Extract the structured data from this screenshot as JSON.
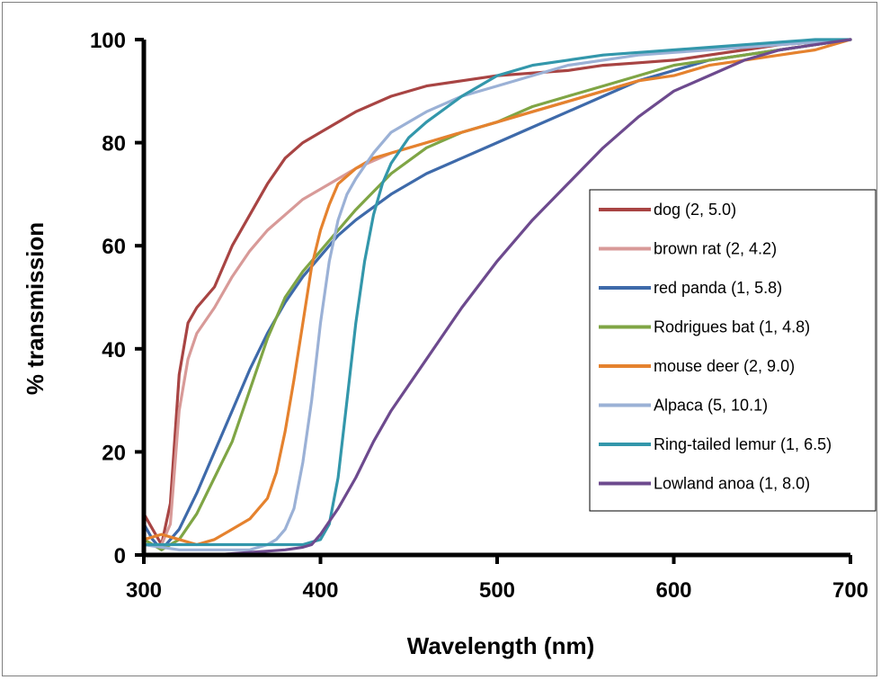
{
  "chart_data": {
    "type": "line",
    "title": "",
    "xlabel": "Wavelength (nm)",
    "ylabel": "% transmission",
    "xlim": [
      300,
      700
    ],
    "ylim": [
      0,
      100
    ],
    "x_ticks": [
      300,
      400,
      500,
      600,
      700
    ],
    "y_ticks": [
      0,
      20,
      40,
      60,
      80,
      100
    ],
    "grid": false,
    "legend_position": "right",
    "series": [
      {
        "name": "dog (2, 5.0)",
        "color": "#a84443",
        "x": [
          300,
          305,
          310,
          315,
          320,
          325,
          330,
          340,
          350,
          360,
          370,
          380,
          390,
          400,
          420,
          440,
          460,
          480,
          500,
          520,
          540,
          560,
          580,
          600,
          620,
          640,
          660,
          680,
          700
        ],
        "y": [
          8,
          5,
          2,
          10,
          35,
          45,
          48,
          52,
          60,
          66,
          72,
          77,
          80,
          82,
          86,
          89,
          91,
          92,
          93,
          93.5,
          94,
          95,
          95.5,
          96,
          97,
          98,
          99,
          99.5,
          100
        ]
      },
      {
        "name": "brown rat (2, 4.2)",
        "color": "#d89a98",
        "x": [
          300,
          305,
          310,
          315,
          320,
          325,
          330,
          340,
          350,
          360,
          370,
          380,
          390,
          400,
          420,
          440,
          460,
          480,
          500,
          520,
          540,
          560,
          580,
          600,
          620,
          640,
          660,
          680,
          700
        ],
        "y": [
          3,
          2,
          2,
          6,
          28,
          38,
          43,
          48,
          54,
          59,
          63,
          66,
          69,
          71,
          75,
          78,
          80,
          82,
          84,
          86,
          88,
          90,
          92,
          94,
          96,
          97,
          98,
          99,
          100
        ]
      },
      {
        "name": "red panda (1, 5.8)",
        "color": "#3e6aaa",
        "x": [
          300,
          305,
          310,
          320,
          330,
          340,
          350,
          360,
          370,
          380,
          390,
          400,
          410,
          420,
          440,
          460,
          480,
          500,
          520,
          540,
          560,
          580,
          600,
          620,
          640,
          660,
          680,
          700
        ],
        "y": [
          6,
          3,
          1,
          5,
          12,
          20,
          28,
          36,
          43,
          49,
          54,
          58,
          62,
          65,
          70,
          74,
          77,
          80,
          83,
          86,
          89,
          92,
          94,
          96,
          97,
          98,
          99,
          100
        ]
      },
      {
        "name": "Rodrigues bat (1, 4.8)",
        "color": "#7fa545",
        "x": [
          300,
          305,
          310,
          320,
          330,
          340,
          350,
          360,
          370,
          380,
          390,
          400,
          410,
          420,
          440,
          460,
          480,
          500,
          520,
          540,
          560,
          580,
          600,
          620,
          640,
          660,
          680,
          700
        ],
        "y": [
          3,
          2,
          1,
          3,
          8,
          15,
          22,
          32,
          42,
          50,
          55,
          59,
          63,
          67,
          74,
          79,
          82,
          84,
          87,
          89,
          91,
          93,
          95,
          96,
          97,
          98,
          99,
          100
        ]
      },
      {
        "name": "mouse deer (2, 9.0)",
        "color": "#e5822e",
        "x": [
          300,
          310,
          320,
          330,
          340,
          350,
          360,
          370,
          375,
          380,
          385,
          390,
          395,
          400,
          405,
          410,
          420,
          430,
          440,
          460,
          480,
          500,
          520,
          540,
          560,
          580,
          600,
          620,
          640,
          660,
          680,
          700
        ],
        "y": [
          3,
          4,
          3,
          2,
          3,
          5,
          7,
          11,
          16,
          24,
          34,
          45,
          56,
          63,
          68,
          72,
          75,
          77,
          78,
          80,
          82,
          84,
          86,
          88,
          90,
          92,
          93,
          95,
          96,
          97,
          98,
          100
        ]
      },
      {
        "name": "Alpaca (5, 10.1)",
        "color": "#9bb1d6",
        "x": [
          300,
          320,
          340,
          360,
          370,
          375,
          380,
          385,
          390,
          395,
          400,
          405,
          410,
          415,
          420,
          430,
          440,
          460,
          480,
          500,
          520,
          540,
          560,
          580,
          600,
          620,
          640,
          660,
          680,
          700
        ],
        "y": [
          2,
          1,
          1,
          1,
          2,
          3,
          5,
          9,
          18,
          30,
          45,
          57,
          65,
          70,
          73,
          78,
          82,
          86,
          89,
          91,
          93,
          95,
          96,
          97,
          97.5,
          98,
          98.5,
          99,
          99.5,
          100
        ]
      },
      {
        "name": "Ring-tailed lemur (1, 6.5)",
        "color": "#3397ab",
        "x": [
          300,
          310,
          330,
          350,
          370,
          390,
          400,
          405,
          410,
          415,
          420,
          425,
          430,
          435,
          440,
          450,
          460,
          480,
          500,
          520,
          540,
          560,
          580,
          600,
          620,
          640,
          660,
          680,
          700
        ],
        "y": [
          2,
          2,
          2,
          2,
          2,
          2,
          3,
          6,
          15,
          30,
          45,
          57,
          66,
          72,
          76,
          81,
          84,
          89,
          93,
          95,
          96,
          97,
          97.5,
          98,
          98.5,
          99,
          99.5,
          100,
          100
        ]
      },
      {
        "name": "Lowland anoa (1, 8.0)",
        "color": "#6d4a8e",
        "x": [
          300,
          320,
          340,
          360,
          380,
          390,
          395,
          400,
          410,
          420,
          430,
          440,
          460,
          480,
          500,
          520,
          540,
          560,
          580,
          600,
          620,
          640,
          660,
          680,
          700
        ],
        "y": [
          0,
          0,
          0,
          0.5,
          1,
          1.5,
          2,
          4,
          9,
          15,
          22,
          28,
          38,
          48,
          57,
          65,
          72,
          79,
          85,
          90,
          93,
          96,
          98,
          99,
          100
        ]
      }
    ]
  }
}
